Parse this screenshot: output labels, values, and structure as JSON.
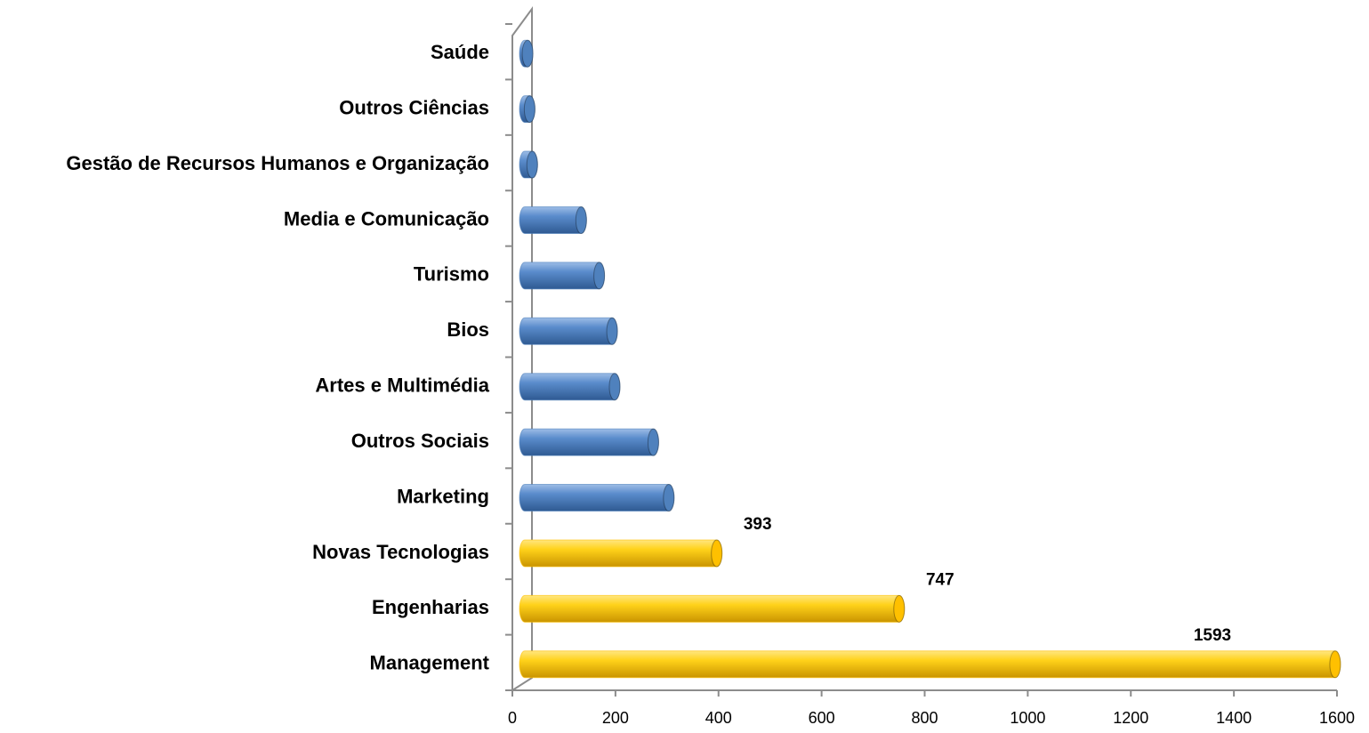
{
  "chart_data": {
    "type": "bar",
    "orientation": "horizontal",
    "categories": [
      "Management",
      "Engenharias",
      "Novas Tecnologias",
      "Marketing",
      "Outros Sociais",
      "Artes e Multimédia",
      "Bios",
      "Turismo",
      "Media e Comunicação",
      "Gestão de Recursos Humanos e Organização",
      "Outros Ciências",
      "Saúde"
    ],
    "values": [
      1593,
      747,
      393,
      300,
      270,
      195,
      190,
      165,
      130,
      35,
      30,
      26
    ],
    "value_labels": [
      "1593",
      "747",
      "393",
      null,
      null,
      null,
      null,
      null,
      null,
      null,
      null,
      null
    ],
    "colors": [
      "#ffc000",
      "#ffc000",
      "#ffc000",
      "#4f81bd",
      "#4f81bd",
      "#4f81bd",
      "#4f81bd",
      "#4f81bd",
      "#4f81bd",
      "#4f81bd",
      "#4f81bd",
      "#4f81bd"
    ],
    "xlim": [
      0,
      1600
    ],
    "xticks": [
      0,
      200,
      400,
      600,
      800,
      1000,
      1200,
      1400,
      1600
    ],
    "grid": false
  }
}
